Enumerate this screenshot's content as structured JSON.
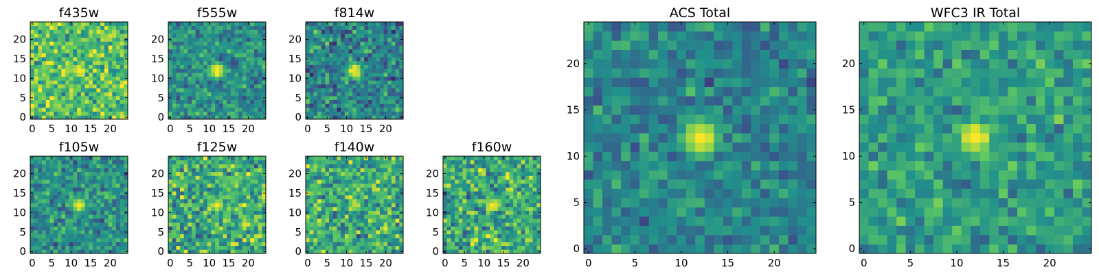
{
  "figure": {
    "colormap": "viridis",
    "colormap_stops": [
      "#440154",
      "#3b528b",
      "#21918c",
      "#5ec962",
      "#fde725"
    ]
  },
  "chart_data": [
    {
      "type": "heatmap",
      "title": "f435w",
      "xlim": [
        0,
        24
      ],
      "ylim": [
        0,
        24
      ],
      "xticks": [
        0,
        5,
        10,
        15,
        20
      ],
      "yticks": [
        0,
        5,
        10,
        15,
        20
      ],
      "grid": false,
      "source_center": [
        12,
        12
      ],
      "source_peak": 1.0,
      "background_level": 0.72,
      "noise": 0.14
    },
    {
      "type": "heatmap",
      "title": "f555w",
      "xlim": [
        0,
        24
      ],
      "ylim": [
        0,
        24
      ],
      "xticks": [
        0,
        5,
        10,
        15,
        20
      ],
      "yticks": [
        0,
        5,
        10,
        15,
        20
      ],
      "grid": false,
      "source_center": [
        12,
        12
      ],
      "source_peak": 1.0,
      "background_level": 0.5,
      "noise": 0.11
    },
    {
      "type": "heatmap",
      "title": "f814w",
      "xlim": [
        0,
        24
      ],
      "ylim": [
        0,
        24
      ],
      "xticks": [
        0,
        5,
        10,
        15,
        20
      ],
      "yticks": [
        0,
        5,
        10,
        15,
        20
      ],
      "grid": false,
      "source_center": [
        12,
        12
      ],
      "source_peak": 1.0,
      "background_level": 0.45,
      "noise": 0.13
    },
    {
      "type": "heatmap",
      "title": "f105w",
      "xlim": [
        0,
        24
      ],
      "ylim": [
        0,
        24
      ],
      "xticks": [
        0,
        5,
        10,
        15,
        20
      ],
      "yticks": [
        0,
        5,
        10,
        15,
        20
      ],
      "grid": false,
      "source_center": [
        12,
        12
      ],
      "source_peak": 0.95,
      "background_level": 0.5,
      "noise": 0.12
    },
    {
      "type": "heatmap",
      "title": "f125w",
      "xlim": [
        0,
        24
      ],
      "ylim": [
        0,
        24
      ],
      "xticks": [
        0,
        5,
        10,
        15,
        20
      ],
      "yticks": [
        0,
        5,
        10,
        15,
        20
      ],
      "grid": false,
      "source_center": [
        12,
        12
      ],
      "source_peak": 0.95,
      "background_level": 0.62,
      "noise": 0.16
    },
    {
      "type": "heatmap",
      "title": "f140w",
      "xlim": [
        0,
        24
      ],
      "ylim": [
        0,
        24
      ],
      "xticks": [
        0,
        5,
        10,
        15,
        20
      ],
      "yticks": [
        0,
        5,
        10,
        15,
        20
      ],
      "grid": false,
      "source_center": [
        12,
        12
      ],
      "source_peak": 0.9,
      "background_level": 0.62,
      "noise": 0.15
    },
    {
      "type": "heatmap",
      "title": "f160w",
      "xlim": [
        0,
        24
      ],
      "ylim": [
        0,
        24
      ],
      "xticks": [
        0,
        5,
        10,
        15,
        20
      ],
      "yticks": [
        0,
        5,
        10,
        15,
        20
      ],
      "grid": false,
      "source_center": [
        12,
        12
      ],
      "source_peak": 0.95,
      "background_level": 0.62,
      "noise": 0.16
    },
    {
      "type": "heatmap",
      "title": "ACS Total",
      "xlim": [
        0,
        24
      ],
      "ylim": [
        0,
        24
      ],
      "xticks": [
        0,
        5,
        10,
        15,
        20
      ],
      "yticks": [
        0,
        5,
        10,
        15,
        20
      ],
      "grid": false,
      "source_center": [
        12,
        12
      ],
      "source_peak": 1.0,
      "background_level": 0.45,
      "noise": 0.1
    },
    {
      "type": "heatmap",
      "title": "WFC3 IR Total",
      "xlim": [
        0,
        24
      ],
      "ylim": [
        0,
        24
      ],
      "xticks": [
        0,
        5,
        10,
        15,
        20
      ],
      "yticks": [
        0,
        5,
        10,
        15,
        20
      ],
      "grid": false,
      "source_center": [
        12,
        12
      ],
      "source_peak": 1.0,
      "background_level": 0.55,
      "noise": 0.1
    }
  ]
}
